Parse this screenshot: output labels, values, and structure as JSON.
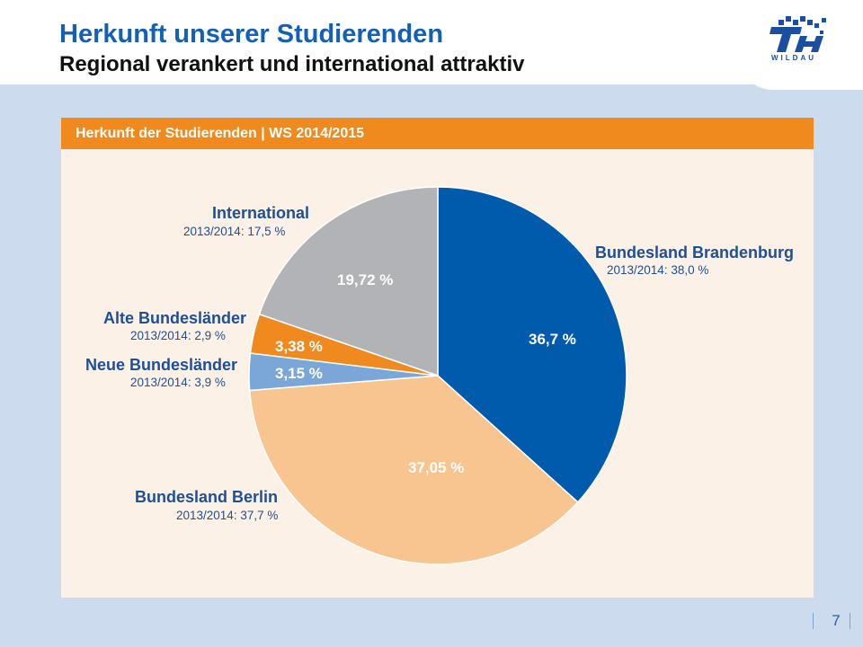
{
  "slide": {
    "title": "Herkunft unserer Studierenden",
    "subtitle": "Regional verankert und international attraktiv",
    "page_number": "7",
    "logo_text": "WILDAU"
  },
  "colors": {
    "title_blue": "#1560b7",
    "brandenburg": "#005bac",
    "berlin": "#f8c591",
    "neue": "#7aa7d8",
    "alte": "#f08a1e",
    "international": "#b2b3b6",
    "panel_bg": "#fbf1e6",
    "header_orange": "#f08a1e",
    "label_blue": "#1d4f9a"
  },
  "chart_data": {
    "type": "pie",
    "title": "Herkunft der Studierenden | WS 2014/2015",
    "slices": [
      {
        "key": "brandenburg",
        "name": "Bundesland Brandenburg",
        "value": 36.7,
        "value_label": "36,7 %",
        "previous": "2013/2014: 38,0 %"
      },
      {
        "key": "berlin",
        "name": "Bundesland Berlin",
        "value": 37.05,
        "value_label": "37,05 %",
        "previous": "2013/2014: 37,7 %"
      },
      {
        "key": "neue",
        "name": "Neue Bundesländer",
        "value": 3.15,
        "value_label": "3,15 %",
        "previous": "2013/2014: 3,9 %"
      },
      {
        "key": "alte",
        "name": "Alte Bundesländer",
        "value": 3.38,
        "value_label": "3,38 %",
        "previous": "2013/2014: 2,9 %"
      },
      {
        "key": "international",
        "name": "International",
        "value": 19.72,
        "value_label": "19,72 %",
        "previous": "2013/2014: 17,5 %"
      }
    ]
  }
}
